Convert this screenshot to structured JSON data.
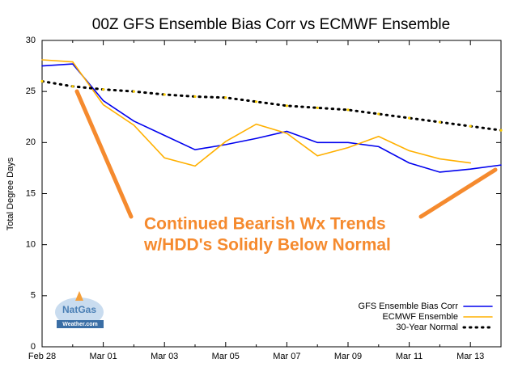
{
  "chart_data": {
    "type": "line",
    "title": "00Z GFS Ensemble Bias Corr vs ECMWF Ensemble",
    "y_label": "Total Degree Days",
    "categories": [
      "Feb 28",
      null,
      "Mar 01",
      null,
      "Mar 03",
      null,
      "Mar 05",
      null,
      "Mar 07",
      null,
      "Mar 09",
      null,
      "Mar 11",
      null,
      "Mar 13",
      null
    ],
    "series": [
      {
        "name": "GFS Ensemble Bias Corr",
        "color": "#0000ee",
        "style": "solid",
        "values": [
          27.5,
          27.7,
          24.1,
          22.1,
          20.7,
          19.3,
          19.8,
          20.4,
          21.1,
          20.0,
          20.0,
          19.6,
          18.0,
          17.1,
          17.4,
          17.8
        ]
      },
      {
        "name": "ECMWF Ensemble",
        "color": "#ffb000",
        "style": "solid",
        "values": [
          28.1,
          27.9,
          23.7,
          21.7,
          18.5,
          17.7,
          20.1,
          21.8,
          20.9,
          18.7,
          19.5,
          20.6,
          19.2,
          18.4,
          18.0,
          null
        ]
      },
      {
        "name": "30-Year Normal",
        "color": "#000000",
        "style": "dotted",
        "values": [
          26.0,
          25.5,
          25.2,
          25.0,
          24.7,
          24.5,
          24.4,
          24.0,
          23.6,
          23.4,
          23.2,
          22.8,
          22.4,
          22.0,
          21.6,
          21.2
        ]
      }
    ],
    "ylim": [
      0,
      30
    ],
    "yticks": [
      0,
      5,
      10,
      15,
      20,
      25,
      30
    ],
    "grid": false,
    "legend": "lower right",
    "annotation": [
      "Continued Bearish Wx Trends",
      "w/HDD's Solidly Below Normal"
    ],
    "logo": [
      "NatGas",
      "Weather.com"
    ]
  }
}
